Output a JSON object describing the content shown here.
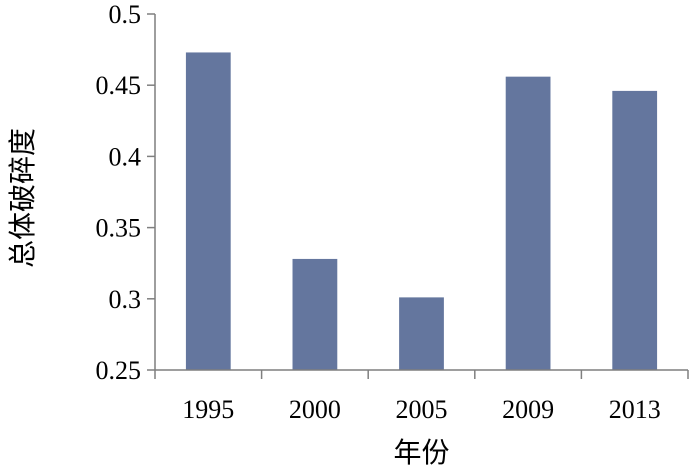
{
  "chart_data": {
    "type": "bar",
    "categories": [
      "1995",
      "2000",
      "2005",
      "2009",
      "2013"
    ],
    "values": [
      0.473,
      0.328,
      0.301,
      0.456,
      0.446
    ],
    "xlabel": "年份",
    "ylabel": "总体破碎度",
    "ylim": [
      0.25,
      0.5
    ],
    "yticks": [
      "0.25",
      "0.3",
      "0.35",
      "0.4",
      "0.45",
      "0.5"
    ],
    "bar_color": "#64769e",
    "grid": false,
    "legend": "none"
  }
}
